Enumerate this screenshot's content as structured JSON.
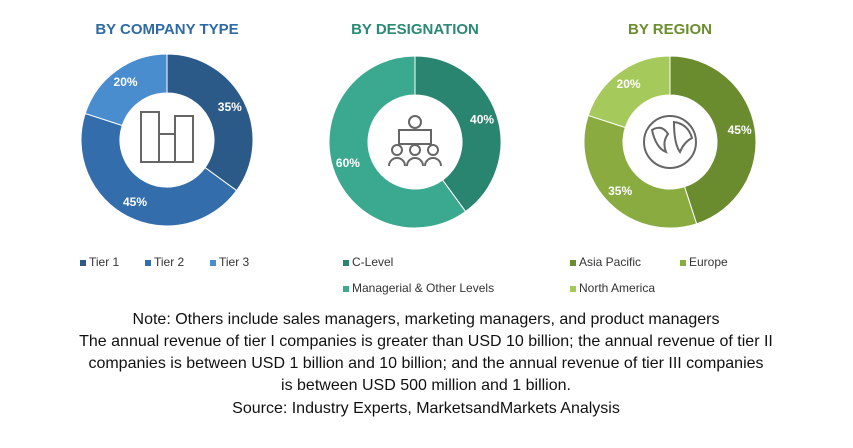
{
  "chart_data": [
    {
      "type": "pie",
      "title": "BY COMPANY TYPE",
      "title_color": "#2f6aa6",
      "categories": [
        "Tier 1",
        "Tier 2",
        "Tier 3"
      ],
      "values": [
        35,
        45,
        20
      ],
      "value_labels": [
        "35%",
        "45%",
        "20%"
      ],
      "colors": [
        "#2c5a88",
        "#346dab",
        "#4a8dcf"
      ]
    },
    {
      "type": "pie",
      "title": "BY DESIGNATION",
      "title_color": "#2a8a75",
      "categories": [
        "C-Level",
        "Managerial & Other Levels"
      ],
      "values": [
        40,
        60
      ],
      "value_labels": [
        "40%",
        "60%"
      ],
      "colors": [
        "#2a8570",
        "#3aa98f"
      ]
    },
    {
      "type": "pie",
      "title": "BY REGION",
      "title_color": "#6b8e2f",
      "categories": [
        "Asia Pacific",
        "Europe",
        "North America"
      ],
      "values": [
        45,
        35,
        20
      ],
      "value_labels": [
        "45%",
        "35%",
        "20%"
      ],
      "colors": [
        "#6a8c2e",
        "#8aab40",
        "#a6c95c"
      ]
    }
  ],
  "notes": [
    "Note: Others include sales managers, marketing managers, and product managers",
    "The annual revenue of tier I companies is greater than USD 10 billion; the annual revenue of tier II",
    "companies is between USD 1 billion and 10 billion; and the annual revenue of tier III companies",
    "is between USD 500 million and 1 billion.",
    "Source: Industry Experts, MarketsandMarkets Analysis"
  ]
}
